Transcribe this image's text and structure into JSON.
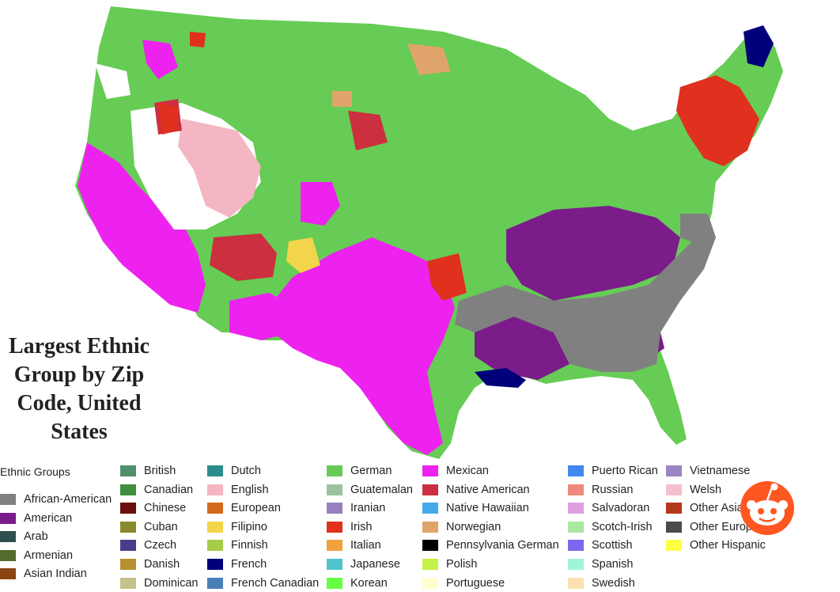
{
  "title": "Largest Ethnic Group by Zip Code, United States",
  "legend": {
    "title": "Ethnic Groups",
    "columns": [
      [
        {
          "label": "African-American",
          "color": "#808080"
        },
        {
          "label": "American",
          "color": "#7b1c8a"
        },
        {
          "label": "Arab",
          "color": "#2f4f4f"
        },
        {
          "label": "Armenian",
          "color": "#556b2f"
        },
        {
          "label": "Asian Indian",
          "color": "#8b4513"
        }
      ],
      [
        {
          "label": "British",
          "color": "#4f8f6a"
        },
        {
          "label": "Canadian",
          "color": "#3f8f3f"
        },
        {
          "label": "Chinese",
          "color": "#6b0f0f"
        },
        {
          "label": "Cuban",
          "color": "#8a8a2a"
        },
        {
          "label": "Czech",
          "color": "#483d8b"
        },
        {
          "label": "Danish",
          "color": "#b8902f"
        },
        {
          "label": "Dominican",
          "color": "#c2c28a"
        }
      ],
      [
        {
          "label": "Dutch",
          "color": "#2e8b8b"
        },
        {
          "label": "English",
          "color": "#f4b6c2"
        },
        {
          "label": "European",
          "color": "#d2691e"
        },
        {
          "label": "Filipino",
          "color": "#f2d54a"
        },
        {
          "label": "Finnish",
          "color": "#a6cc4a"
        },
        {
          "label": "French",
          "color": "#00007a"
        },
        {
          "label": "French Canadian",
          "color": "#4a7fb5"
        }
      ],
      [
        {
          "label": "German",
          "color": "#66cc55"
        },
        {
          "label": "Guatemalan",
          "color": "#9cc49c"
        },
        {
          "label": "Iranian",
          "color": "#9a7fc0"
        },
        {
          "label": "Irish",
          "color": "#e0301e"
        },
        {
          "label": "Italian",
          "color": "#f2a23c"
        },
        {
          "label": "Japanese",
          "color": "#4fc4cc"
        },
        {
          "label": "Korean",
          "color": "#66ff44"
        }
      ],
      [
        {
          "label": "Mexican",
          "color": "#ee22ee"
        },
        {
          "label": "Native American",
          "color": "#cc2f3f"
        },
        {
          "label": "Native Hawaiian",
          "color": "#44aaee"
        },
        {
          "label": "Norwegian",
          "color": "#e0a46a"
        },
        {
          "label": "Pennsylvania German",
          "color": "#000000"
        },
        {
          "label": "Polish",
          "color": "#c4f24a"
        },
        {
          "label": "Portuguese",
          "color": "#ffffd0"
        }
      ],
      [
        {
          "label": "Puerto Rican",
          "color": "#3f88ee"
        },
        {
          "label": "Russian",
          "color": "#ee8a7a"
        },
        {
          "label": "Salvadoran",
          "color": "#dda0dd"
        },
        {
          "label": "Scotch-Irish",
          "color": "#a8e8a0"
        },
        {
          "label": "Scottish",
          "color": "#7b68ee"
        },
        {
          "label": "Spanish",
          "color": "#a0f5d8"
        },
        {
          "label": "Swedish",
          "color": "#fbe0b0"
        }
      ],
      [
        {
          "label": "Vietnamese",
          "color": "#9a86c0"
        },
        {
          "label": "Welsh",
          "color": "#f5bfcc"
        },
        {
          "label": "Other Asian",
          "color": "#b5381a"
        },
        {
          "label": "Other European",
          "color": "#4a4a4a"
        },
        {
          "label": "Other Hispanic",
          "color": "#ffff44"
        }
      ]
    ]
  },
  "map_colors": {
    "background": "#ffffff",
    "white_areas": "#ffffff",
    "ocean_outline": "#cccccc"
  },
  "icon": "reddit-snoo-icon",
  "icon_color": "#ff5722"
}
